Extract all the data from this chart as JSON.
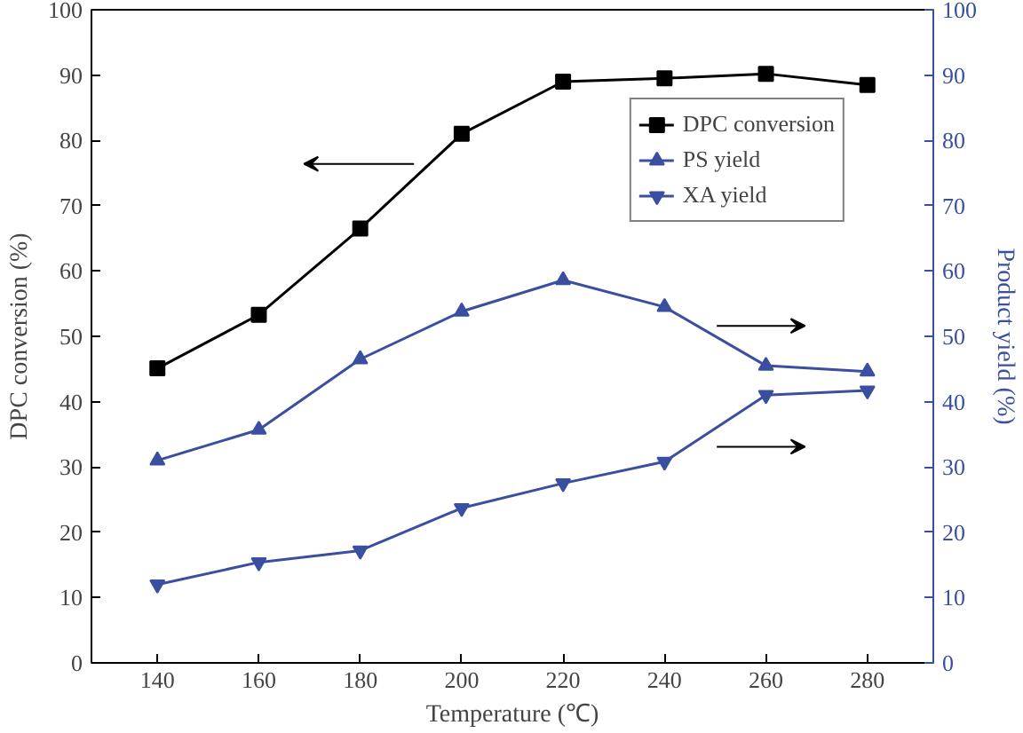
{
  "chart_data": {
    "type": "line",
    "xlabel": "Temperature (℃)",
    "ylabel": "DPC conversion (%)",
    "y2label": "Product yield (%)",
    "x": [
      140,
      160,
      180,
      200,
      220,
      240,
      260,
      280
    ],
    "xlim": [
      127,
      293
    ],
    "xticks": [
      140,
      160,
      180,
      200,
      220,
      240,
      260,
      280
    ],
    "ylim": [
      0,
      100
    ],
    "yticks": [
      0,
      10,
      20,
      30,
      40,
      50,
      60,
      70,
      80,
      90,
      100
    ],
    "y2lim": [
      0,
      100
    ],
    "y2ticks": [
      0,
      10,
      20,
      30,
      40,
      50,
      60,
      70,
      80,
      90,
      100
    ],
    "series": [
      {
        "name": "DPC conversion",
        "color": "#000000",
        "marker": "square",
        "values": [
          45.1,
          53.3,
          66.5,
          81.0,
          89.0,
          89.5,
          90.2,
          88.5
        ]
      },
      {
        "name": "PS yield",
        "color": "#3a4fa0",
        "marker": "triangle",
        "axis": "y2",
        "values": [
          31.0,
          35.7,
          46.5,
          53.8,
          58.6,
          54.5,
          45.5,
          44.6
        ]
      },
      {
        "name": "XA yield",
        "color": "#3a4fa0",
        "marker": "triangle",
        "axis": "y2",
        "values": [
          12.0,
          15.4,
          17.2,
          23.7,
          27.5,
          30.8,
          41.0,
          41.7
        ]
      }
    ],
    "legend": "top right",
    "grid": false,
    "line_style": "solid"
  }
}
